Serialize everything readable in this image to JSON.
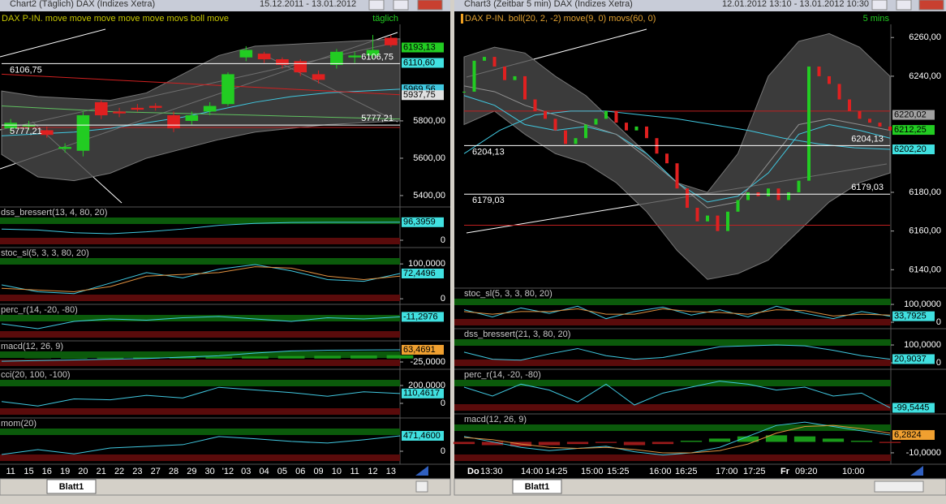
{
  "windows": [
    {
      "title": "Chart2 (Täglich)  DAX (Indizes Xetra)",
      "range": "15.12.2011 - 13.01.2012",
      "header": "DAX P-IN. move move move move move movs boll move",
      "interval": "täglich",
      "tab": "Blatt1",
      "price": {
        "ylim": [
          5339,
          6317
        ],
        "yticks": [
          {
            "value": 5400,
            "label": "5400,00"
          },
          {
            "value": 5600,
            "label": "5600,00"
          },
          {
            "value": 5800,
            "label": "5800,00"
          }
        ],
        "candles": {
          "categories": [
            "11",
            "15",
            "16",
            "19",
            "20",
            "21",
            "22",
            "23",
            "27",
            "28",
            "29",
            "30",
            "'12",
            "03",
            "04",
            "05",
            "06",
            "09",
            "10",
            "11",
            "12",
            "13"
          ],
          "open": [
            5760,
            5770,
            5750,
            5650,
            5640,
            5900,
            5850,
            5870,
            5880,
            5830,
            5800,
            5850,
            5890,
            6140,
            6160,
            6130,
            6120,
            6050,
            6100,
            6140,
            6150,
            6245
          ],
          "high": [
            5810,
            5800,
            5770,
            5680,
            5850,
            5910,
            5870,
            5890,
            5895,
            5850,
            5850,
            5900,
            6060,
            6200,
            6170,
            6140,
            6130,
            6070,
            6185,
            6170,
            6260,
            6260
          ],
          "low": [
            5740,
            5750,
            5710,
            5630,
            5610,
            5810,
            5820,
            5850,
            5855,
            5740,
            5780,
            5830,
            5880,
            6120,
            6110,
            6080,
            6040,
            6000,
            6080,
            6110,
            6130,
            6195
          ],
          "close": [
            5790,
            5780,
            5725,
            5660,
            5830,
            5830,
            5840,
            5860,
            5870,
            5760,
            5830,
            5880,
            6050,
            6180,
            6130,
            6100,
            6060,
            6020,
            6170,
            6150,
            6180,
            6205
          ]
        },
        "band": {
          "upper": [
            5960,
            5930,
            5920,
            5910,
            5950,
            6050,
            6150,
            6200,
            6210,
            6220,
            6230,
            6240
          ],
          "lower": [
            5620,
            5500,
            5480,
            5520,
            5600,
            5650,
            5700,
            5740,
            5760,
            5780,
            5790,
            5800
          ]
        },
        "lines": [
          {
            "color": "#40c8e0",
            "values": [
              5720,
              5730,
              5740,
              5760,
              5790,
              5820,
              5860,
              5900,
              5930,
              5950,
              5960,
              5970
            ]
          },
          {
            "color": "#d02020",
            "values": [
              6050,
              6040,
              6030,
              6020,
              6010,
              6000,
              5990,
              5980,
              5970,
              5960,
              5950,
              5940
            ]
          },
          {
            "color": "#60c060",
            "values": [
              5880,
              5870,
              5860,
              5850,
              5845,
              5840,
              5835,
              5830,
              5825,
              5820,
              5815,
              5810
            ]
          }
        ],
        "levels": [
          {
            "value": 6106.75,
            "label": "6106,75"
          },
          {
            "value": 5777.21,
            "label": "5777,21"
          }
        ],
        "red_lines": [
          5765
        ],
        "markers": [
          {
            "value": 6193.13,
            "label": "6193,13",
            "color": "#22cc22"
          },
          {
            "value": 6110.6,
            "label": "6110,60",
            "color": "#40e0e0"
          },
          {
            "value": 5969.56,
            "label": "5969,56",
            "color": "#40c8e0"
          },
          {
            "value": 5937.75,
            "label": "5937,75",
            "color": "#e0e0e0"
          }
        ]
      },
      "panes": [
        {
          "label": "dss_bressert(13, 4, 80, 20)",
          "ylim": [
            -39,
            178
          ],
          "yticks": [
            0
          ],
          "series": [
            {
              "color": "#40c8e0",
              "values": [
                60,
                55,
                40,
                35,
                45,
                60,
                80,
                90,
                95,
                96,
                96,
                96.4
              ]
            }
          ],
          "last": {
            "value": 96.3959,
            "label": "96,3959",
            "color": "#40e0e0"
          }
        },
        {
          "label": "stoc_sl(5, 3, 3, 80, 20)",
          "ylim": [
            -16,
            147
          ],
          "yticks": [
            {
              "value": 100,
              "label": "100,0000"
            },
            0
          ],
          "series": [
            {
              "color": "#40c8e0",
              "values": [
                40,
                20,
                15,
                45,
                75,
                60,
                85,
                98,
                80,
                55,
                50,
                72.4
              ]
            },
            {
              "color": "#e09040",
              "values": [
                30,
                25,
                20,
                35,
                65,
                70,
                75,
                92,
                88,
                65,
                55,
                65
              ]
            }
          ],
          "last": {
            "value": 72.4496,
            "label": "72,4496",
            "color": "#40e0e0"
          }
        },
        {
          "label": "perc_r(14, -20, -80)",
          "ylim": [
            -110,
            40
          ],
          "yticks": [],
          "series": [
            {
              "color": "#40c8e0",
              "values": [
                -40,
                -60,
                -30,
                -20,
                -25,
                -15,
                -10,
                -20,
                -30,
                -15,
                -20,
                -11.3
              ]
            }
          ],
          "last": {
            "value": -11.2976,
            "label": "-11,2976",
            "color": "#40e0e0"
          }
        },
        {
          "label": "macd(12, 26, 9)",
          "ylim": [
            -78,
            128
          ],
          "yticks": [
            {
              "value": -25,
              "label": "-25,0000"
            }
          ],
          "histogram": [
            0,
            2,
            4,
            6,
            8,
            10,
            12,
            15,
            18,
            20,
            22,
            24
          ],
          "series": [
            {
              "color": "#40c8e0",
              "values": [
                -20,
                -15,
                -10,
                -5,
                0,
                10,
                20,
                40,
                55,
                60,
                62,
                63.5
              ]
            }
          ],
          "last": {
            "value": 63.4691,
            "label": "63,4691",
            "color": "#f0a030"
          }
        },
        {
          "label": "cci(20, 100, -100)",
          "ylim": [
            -164,
            382
          ],
          "yticks": [
            {
              "value": 200,
              "label": "200,0000"
            },
            0
          ],
          "series": [
            {
              "color": "#40c8e0",
              "values": [
                20,
                -30,
                50,
                40,
                90,
                60,
                180,
                150,
                120,
                80,
                130,
                110.5
              ]
            }
          ],
          "last": {
            "value": 110.4617,
            "label": "110,4617",
            "color": "#40e0e0"
          }
        },
        {
          "label": "mom(20)",
          "ylim": [
            -397,
            1017
          ],
          "yticks": [
            0
          ],
          "series": [
            {
              "color": "#40c8e0",
              "values": [
                -100,
                50,
                -80,
                100,
                150,
                200,
                450,
                380,
                300,
                250,
                350,
                471.5
              ]
            }
          ],
          "last": {
            "value": 471.46,
            "label": "471,4600",
            "color": "#40e0e0"
          }
        }
      ]
    },
    {
      "title": "Chart3 (Zeitbar 5 min)  DAX (Indizes Xetra)",
      "range": "12.01.2012 13:10 - 13.01.2012 10:30",
      "header": "DAX P-IN. boll(20, 2, -2) move(9, 0) movs(60, 0)",
      "interval": "5 mins",
      "tab": "Blatt1",
      "xlabels": [
        "Do",
        "13:30",
        "14:00",
        "14:25",
        "15:00",
        "15:25",
        "16:00",
        "16:25",
        "17:00",
        "17:25",
        "Fr",
        "09:20",
        "10:00"
      ],
      "price": {
        "ylim": [
          6130.5,
          6266.8
        ],
        "yticks": [
          {
            "value": 6140,
            "label": "6140,00"
          },
          {
            "value": 6160,
            "label": "6160,00"
          },
          {
            "value": 6180,
            "label": "6180,00"
          },
          {
            "value": 6240,
            "label": "6240,00"
          },
          {
            "value": 6260,
            "label": "6260,00"
          }
        ],
        "close": [
          6232,
          6248,
          6250,
          6245,
          6238,
          6240,
          6228,
          6222,
          6218,
          6212,
          6205,
          6208,
          6215,
          6218,
          6222,
          6216,
          6212,
          6214,
          6208,
          6200,
          6195,
          6182,
          6172,
          6165,
          6168,
          6160,
          6170,
          6176,
          6180,
          6178,
          6182,
          6176,
          6180,
          6186,
          6245,
          6240,
          6236,
          6228,
          6222,
          6218,
          6216,
          6214,
          6212
        ],
        "band": {
          "upper": [
            6250,
            6255,
            6252,
            6240,
            6230,
            6215,
            6200,
            6185,
            6180,
            6200,
            6240,
            6258,
            6262,
            6255,
            6240
          ],
          "lower": [
            6215,
            6222,
            6210,
            6200,
            6195,
            6185,
            6170,
            6150,
            6135,
            6138,
            6145,
            6160,
            6175,
            6185,
            6190
          ]
        },
        "lines": [
          {
            "color": "#40c8e0",
            "values": [
              6230,
              6225,
              6215,
              6212,
              6214,
              6210,
              6200,
              6185,
              6175,
              6178,
              6190,
              6210,
              6215,
              6212,
              6208
            ]
          },
          {
            "color": "#40c8e0",
            "values": [
              6200,
              6212,
              6220,
              6222,
              6222,
              6220,
              6218,
              6215,
              6212,
              6208,
              6205,
              6203,
              6202.2
            ]
          },
          {
            "color": "#909090",
            "values": [
              6235,
              6232,
              6225,
              6220,
              6215,
              6210,
              6198,
              6185,
              6172,
              6175,
              6195,
              6215,
              6218,
              6215,
              6212
            ]
          }
        ],
        "levels": [
          {
            "value": 6204.13,
            "label": "6204,13"
          },
          {
            "value": 6179.03,
            "label": "6179,03"
          }
        ],
        "red_lines": [
          6222,
          6163
        ],
        "markers": [
          {
            "value": 6220.02,
            "label": "6220,02",
            "color": "#a0a0a0"
          },
          {
            "value": 6212.25,
            "label": "6212,25",
            "color": "#22cc22"
          },
          {
            "value": 6202.2,
            "label": "6202,20",
            "color": "#40e0e0"
          }
        ]
      },
      "panes": [
        {
          "label": "stoc_sl(5, 3, 3, 80, 20)",
          "ylim": [
            -36,
            191
          ],
          "yticks": [
            {
              "value": 100,
              "label": "100,0000"
            },
            0
          ],
          "series": [
            {
              "color": "#40c8e0",
              "values": [
                70,
                30,
                80,
                50,
                90,
                20,
                60,
                85,
                40,
                70,
                30,
                90,
                50,
                20,
                60,
                33.8
              ]
            },
            {
              "color": "#e09040",
              "values": [
                60,
                45,
                60,
                60,
                75,
                45,
                45,
                75,
                60,
                55,
                45,
                70,
                65,
                35,
                45,
                40
              ]
            }
          ],
          "last": {
            "value": 33.7925,
            "label": "33,7925",
            "color": "#40e0e0"
          }
        },
        {
          "label": "dss_bressert(21, 3, 80, 20)",
          "ylim": [
            -36,
            191
          ],
          "yticks": [
            {
              "value": 100,
              "label": "100,0000"
            },
            0
          ],
          "series": [
            {
              "color": "#40c8e0",
              "values": [
                60,
                20,
                15,
                50,
                80,
                40,
                20,
                30,
                60,
                90,
                95,
                100,
                95,
                70,
                40,
                20.9
              ]
            }
          ],
          "last": {
            "value": 20.9037,
            "label": "20,9037",
            "color": "#40e0e0"
          }
        },
        {
          "label": "perc_r(14, -20, -80)",
          "ylim": [
            -120,
            30
          ],
          "yticks": [],
          "series": [
            {
              "color": "#40c8e0",
              "values": [
                -30,
                -60,
                -20,
                -40,
                -80,
                -20,
                -90,
                -50,
                -30,
                -10,
                -20,
                -40,
                -30,
                -60,
                -50,
                -99.5
              ]
            }
          ],
          "last": {
            "value": -99.5445,
            "label": "-99,5445",
            "color": "#40e0e0"
          }
        },
        {
          "label": "macd(12, 26, 9)",
          "ylim": [
            -20.4,
            25.5
          ],
          "yticks": [
            {
              "value": -10,
              "label": "-10,0000"
            }
          ],
          "histogram": [
            -2,
            -3,
            -4,
            -3,
            -2,
            -1,
            -3,
            -2,
            1,
            3,
            5,
            6,
            5,
            3,
            1,
            -1
          ],
          "series": [
            {
              "color": "#40c8e0",
              "values": [
                5,
                0,
                -5,
                -8,
                -6,
                -4,
                -9,
                -12,
                -10,
                -5,
                5,
                15,
                18,
                14,
                10,
                6.3
              ]
            },
            {
              "color": "#e09040",
              "values": [
                4,
                2,
                -2,
                -5,
                -6,
                -5,
                -7,
                -10,
                -10,
                -8,
                -2,
                8,
                14,
                15,
                12,
                8
              ]
            }
          ],
          "last": {
            "value": 6.2824,
            "label": "6,2824",
            "color": "#f0a030"
          }
        }
      ]
    }
  ]
}
